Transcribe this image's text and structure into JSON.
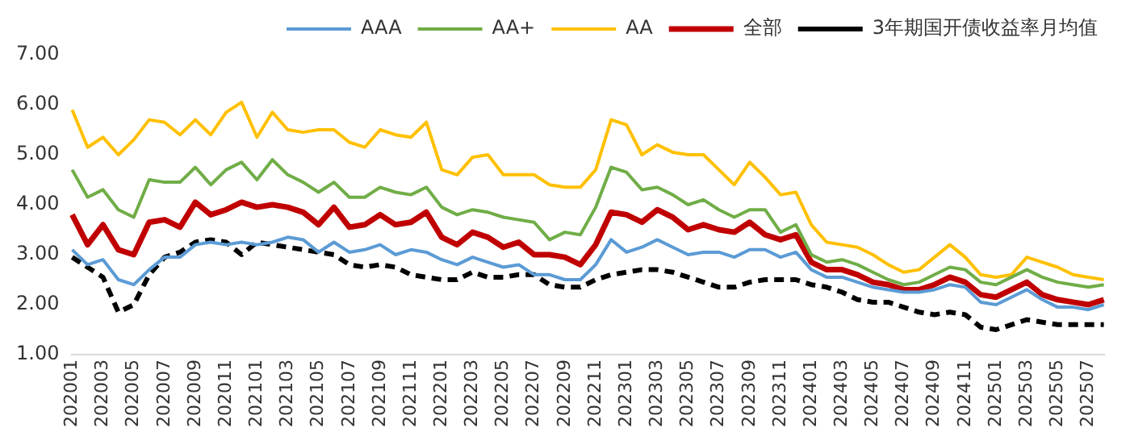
{
  "chart_data": {
    "type": "line",
    "categories": [
      "202001",
      null,
      "202003",
      null,
      "202005",
      null,
      "202007",
      null,
      "202009",
      null,
      "202011",
      null,
      "202101",
      null,
      "202103",
      null,
      "202105",
      null,
      "202107",
      null,
      "202109",
      null,
      "202111",
      null,
      "202201",
      null,
      "202203",
      null,
      "202205",
      null,
      "202207",
      null,
      "202209",
      null,
      "202211",
      null,
      "202301",
      null,
      "202303",
      null,
      "202305",
      null,
      "202307",
      null,
      "202309",
      null,
      "202311",
      null,
      "202401",
      null,
      "202403",
      null,
      "202405",
      null,
      "202407",
      null,
      "202409",
      null,
      "202411",
      null,
      "202501",
      null,
      "202503",
      null,
      "202505",
      null,
      "202507",
      null
    ],
    "series": [
      {
        "name": "AAA",
        "color": "#5b9bd5",
        "values": [
          3.1,
          2.8,
          2.9,
          2.5,
          2.4,
          2.7,
          2.95,
          2.95,
          3.2,
          3.25,
          3.2,
          3.25,
          3.2,
          3.25,
          3.35,
          3.3,
          3.05,
          3.25,
          3.05,
          3.1,
          3.2,
          3.0,
          3.1,
          3.05,
          2.9,
          2.8,
          2.95,
          2.85,
          2.75,
          2.8,
          2.6,
          2.6,
          2.5,
          2.5,
          2.8,
          3.3,
          3.05,
          3.15,
          3.3,
          3.15,
          3.0,
          3.05,
          3.05,
          2.95,
          3.1,
          3.1,
          2.95,
          3.05,
          2.7,
          2.55,
          2.55,
          2.45,
          2.35,
          2.3,
          2.25,
          2.25,
          2.3,
          2.4,
          2.35,
          2.05,
          2.0,
          2.15,
          2.3,
          2.1,
          1.95,
          1.95,
          1.9,
          2.0
        ]
      },
      {
        "name": "AA+",
        "color": "#70ad47",
        "values": [
          4.7,
          4.15,
          4.3,
          3.9,
          3.75,
          4.5,
          4.45,
          4.45,
          4.75,
          4.4,
          4.7,
          4.85,
          4.5,
          4.9,
          4.6,
          4.45,
          4.25,
          4.45,
          4.15,
          4.15,
          4.35,
          4.25,
          4.2,
          4.35,
          3.95,
          3.8,
          3.9,
          3.85,
          3.75,
          3.7,
          3.65,
          3.3,
          3.45,
          3.4,
          3.95,
          4.75,
          4.65,
          4.3,
          4.35,
          4.2,
          4.0,
          4.1,
          3.9,
          3.75,
          3.9,
          3.9,
          3.45,
          3.6,
          3.0,
          2.85,
          2.9,
          2.8,
          2.65,
          2.5,
          2.4,
          2.45,
          2.6,
          2.75,
          2.7,
          2.45,
          2.4,
          2.55,
          2.7,
          2.55,
          2.45,
          2.4,
          2.35,
          2.4
        ]
      },
      {
        "name": "AA",
        "color": "#ffc000",
        "values": [
          5.9,
          5.15,
          5.35,
          5.0,
          5.3,
          5.7,
          5.65,
          5.4,
          5.7,
          5.4,
          5.85,
          6.05,
          5.35,
          5.85,
          5.5,
          5.45,
          5.5,
          5.5,
          5.25,
          5.15,
          5.5,
          5.4,
          5.35,
          5.65,
          4.7,
          4.6,
          4.95,
          5.0,
          4.6,
          4.6,
          4.6,
          4.4,
          4.35,
          4.35,
          4.7,
          5.7,
          5.6,
          5.0,
          5.2,
          5.05,
          5.0,
          5.0,
          4.7,
          4.4,
          4.85,
          4.55,
          4.2,
          4.25,
          3.6,
          3.25,
          3.2,
          3.15,
          3.0,
          2.8,
          2.65,
          2.7,
          2.95,
          3.2,
          2.95,
          2.6,
          2.55,
          2.6,
          2.95,
          2.85,
          2.75,
          2.6,
          2.55,
          2.5
        ]
      },
      {
        "name": "全部",
        "color": "#c00000",
        "values": [
          3.8,
          3.2,
          3.6,
          3.1,
          3.0,
          3.65,
          3.7,
          3.55,
          4.05,
          3.8,
          3.9,
          4.05,
          3.95,
          4.0,
          3.95,
          3.85,
          3.6,
          3.95,
          3.55,
          3.6,
          3.8,
          3.6,
          3.65,
          3.85,
          3.35,
          3.2,
          3.45,
          3.35,
          3.15,
          3.25,
          3.0,
          3.0,
          2.95,
          2.8,
          3.2,
          3.85,
          3.8,
          3.65,
          3.9,
          3.75,
          3.5,
          3.6,
          3.5,
          3.45,
          3.65,
          3.4,
          3.3,
          3.4,
          2.85,
          2.7,
          2.7,
          2.6,
          2.45,
          2.4,
          2.3,
          2.3,
          2.4,
          2.55,
          2.45,
          2.2,
          2.15,
          2.3,
          2.45,
          2.2,
          2.1,
          2.05,
          2.0,
          2.1
        ]
      },
      {
        "name": "3年期国开债收益率月均值",
        "color": "#000000",
        "line_style": "dashed",
        "values": [
          2.95,
          2.75,
          2.55,
          1.85,
          2.0,
          2.6,
          2.95,
          3.05,
          3.25,
          3.3,
          3.25,
          3.0,
          3.25,
          3.2,
          3.15,
          3.1,
          3.05,
          3.0,
          2.8,
          2.75,
          2.8,
          2.75,
          2.6,
          2.55,
          2.5,
          2.5,
          2.65,
          2.55,
          2.55,
          2.6,
          2.6,
          2.4,
          2.35,
          2.35,
          2.5,
          2.6,
          2.65,
          2.7,
          2.7,
          2.65,
          2.55,
          2.45,
          2.35,
          2.35,
          2.45,
          2.5,
          2.5,
          2.5,
          2.4,
          2.35,
          2.25,
          2.1,
          2.05,
          2.05,
          1.95,
          1.85,
          1.8,
          1.85,
          1.8,
          1.55,
          1.5,
          1.6,
          1.7,
          1.65,
          1.6,
          1.6,
          1.6,
          1.6
        ]
      }
    ],
    "ylim": [
      1,
      7
    ],
    "yticks": [
      {
        "value": 1,
        "label": "1.00"
      },
      {
        "value": 2,
        "label": "2.00"
      },
      {
        "value": 3,
        "label": "3.00"
      },
      {
        "value": 4,
        "label": "4.00"
      },
      {
        "value": 5,
        "label": "5.00"
      },
      {
        "value": 6,
        "label": "6.00"
      },
      {
        "value": 7,
        "label": "7.00"
      }
    ],
    "grid": false,
    "legend": "top",
    "marker": "none",
    "line_style": "solid"
  }
}
